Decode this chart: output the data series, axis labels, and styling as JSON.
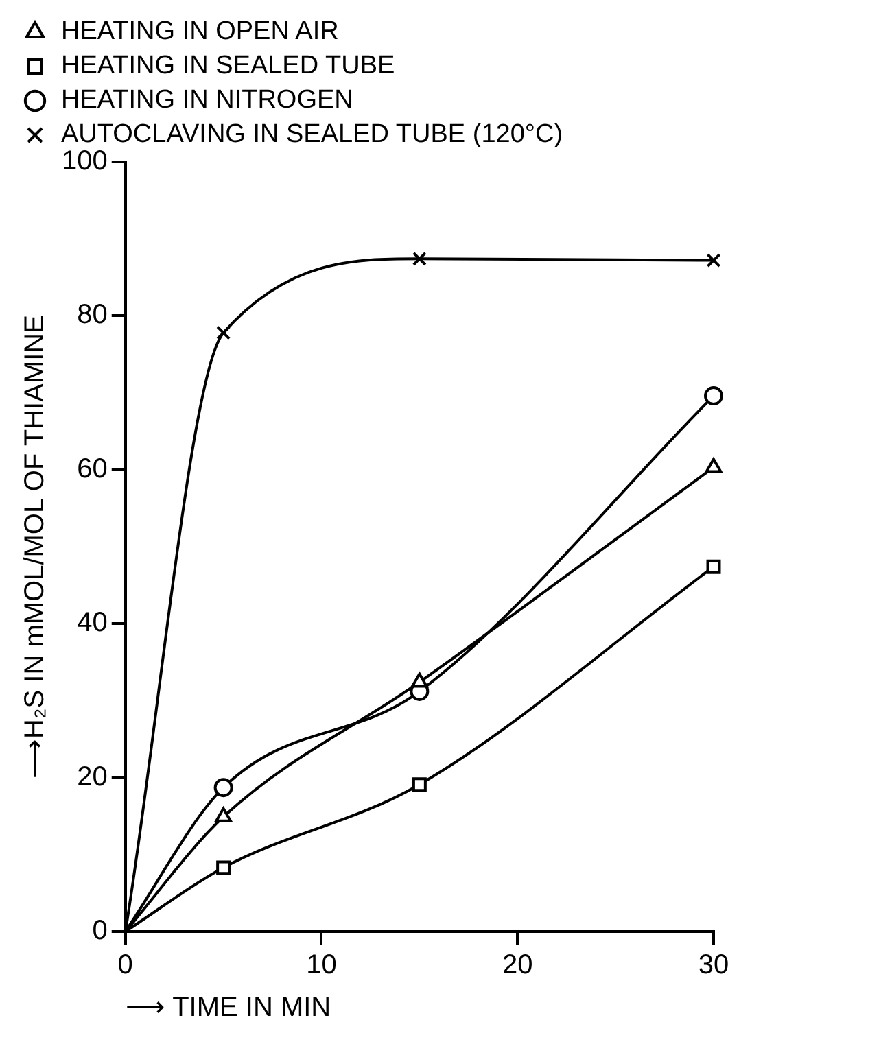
{
  "chart_data": {
    "type": "line",
    "xlabel": "⟶ TIME IN MIN",
    "ylabel": "⟶H₂S IN mMOL/MOL OF THIAMINE",
    "x": [
      0,
      5,
      15,
      30
    ],
    "xlim": [
      0,
      30
    ],
    "xticks": [
      0,
      10,
      20,
      30
    ],
    "ylim": [
      0,
      100
    ],
    "yticks": [
      0,
      20,
      40,
      60,
      80,
      100
    ],
    "grid": false,
    "legend": "top",
    "series": [
      {
        "name": "HEATING IN OPEN AIR",
        "color": "#000000",
        "marker": "triangle",
        "values": [
          0,
          14.9,
          32.4,
          60.3
        ]
      },
      {
        "name": "HEATING IN SEALED TUBE",
        "color": "#000000",
        "marker": "square",
        "values": [
          0,
          8.3,
          19.1,
          47.4
        ]
      },
      {
        "name": "HEATING IN NITROGEN",
        "color": "#000000",
        "marker": "circle",
        "values": [
          0,
          18.7,
          31.2,
          69.6
        ]
      },
      {
        "name": "AUTOCLAVING IN SEALED TUBE (120°C)",
        "color": "#000000",
        "marker": "cross",
        "values": [
          0,
          77.8,
          87.4,
          87.2
        ]
      }
    ]
  }
}
